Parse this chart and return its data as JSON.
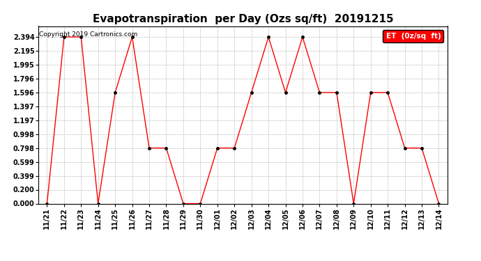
{
  "title": "Evapotranspiration  per Day (Ozs sq/ft)  20191215",
  "copyright": "Copyright 2019 Cartronics.com",
  "legend_label": "ET  (0z/sq  ft)",
  "x_labels": [
    "11/21",
    "11/22",
    "11/23",
    "11/24",
    "11/25",
    "11/26",
    "11/27",
    "11/28",
    "11/29",
    "11/30",
    "12/01",
    "12/02",
    "12/03",
    "12/04",
    "12/05",
    "12/06",
    "12/07",
    "12/08",
    "12/09",
    "12/10",
    "12/11",
    "12/12",
    "12/13",
    "12/14"
  ],
  "y_values": [
    0.0,
    2.394,
    2.394,
    0.0,
    1.596,
    2.394,
    0.798,
    0.798,
    0.0,
    0.0,
    0.798,
    0.798,
    1.596,
    2.394,
    1.596,
    2.394,
    1.596,
    1.596,
    0.0,
    1.596,
    1.596,
    0.798,
    0.798,
    0.0
  ],
  "yticks": [
    0.0,
    0.2,
    0.399,
    0.599,
    0.798,
    0.998,
    1.197,
    1.397,
    1.596,
    1.796,
    1.995,
    2.195,
    2.394
  ],
  "ytick_labels": [
    "0.000",
    "0.200",
    "0.399",
    "0.599",
    "0.798",
    "0.998",
    "1.197",
    "1.397",
    "1.596",
    "1.796",
    "1.995",
    "2.195",
    "2.394"
  ],
  "ylim": [
    0.0,
    2.55
  ],
  "line_color": "red",
  "marker_color": "black",
  "bg_color": "#ffffff",
  "grid_color": "#bbbbbb",
  "title_fontsize": 11,
  "tick_fontsize": 7,
  "copyright_fontsize": 6.5,
  "legend_bg": "red",
  "legend_text_color": "white",
  "legend_fontsize": 7.5
}
